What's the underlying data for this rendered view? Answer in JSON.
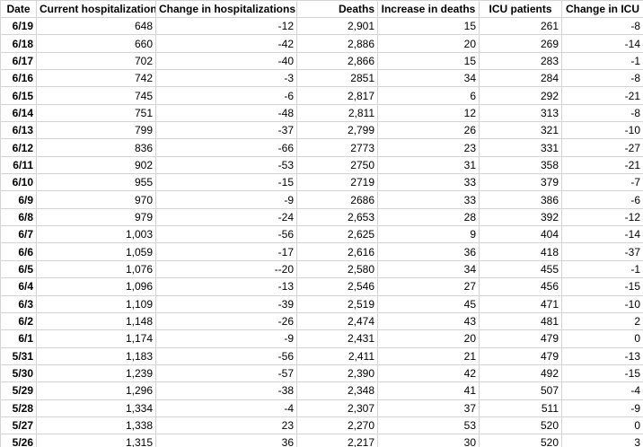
{
  "table": {
    "headers": [
      "Date",
      "Current hospitalizations",
      "Change in hospitalizations",
      "Deaths",
      "Increase in deaths",
      "ICU patients",
      "Change in ICU"
    ],
    "rows": [
      [
        "6/19",
        "648",
        "-12",
        "2,901",
        "15",
        "261",
        "-8"
      ],
      [
        "6/18",
        "660",
        "-42",
        "2,886",
        "20",
        "269",
        "-14"
      ],
      [
        "6/17",
        "702",
        "-40",
        "2,866",
        "15",
        "283",
        "-1"
      ],
      [
        "6/16",
        "742",
        "-3",
        "2851",
        "34",
        "284",
        "-8"
      ],
      [
        "6/15",
        "745",
        "-6",
        "2,817",
        "6",
        "292",
        "-21"
      ],
      [
        "6/14",
        "751",
        "-48",
        "2,811",
        "12",
        "313",
        "-8"
      ],
      [
        "6/13",
        "799",
        "-37",
        "2,799",
        "26",
        "321",
        "-10"
      ],
      [
        "6/12",
        "836",
        "-66",
        "2773",
        "23",
        "331",
        "-27"
      ],
      [
        "6/11",
        "902",
        "-53",
        "2750",
        "31",
        "358",
        "-21"
      ],
      [
        "6/10",
        "955",
        "-15",
        "2719",
        "33",
        "379",
        "-7"
      ],
      [
        "6/9",
        "970",
        "-9",
        "2686",
        "33",
        "386",
        "-6"
      ],
      [
        "6/8",
        "979",
        "-24",
        "2,653",
        "28",
        "392",
        "-12"
      ],
      [
        "6/7",
        "1,003",
        "-56",
        "2,625",
        "9",
        "404",
        "-14"
      ],
      [
        "6/6",
        "1,059",
        "-17",
        "2,616",
        "36",
        "418",
        "-37"
      ],
      [
        "6/5",
        "1,076",
        "--20",
        "2,580",
        "34",
        "455",
        "-1"
      ],
      [
        "6/4",
        "1,096",
        "-13",
        "2,546",
        "27",
        "456",
        "-15"
      ],
      [
        "6/3",
        "1,109",
        "-39",
        "2,519",
        "45",
        "471",
        "-10"
      ],
      [
        "6/2",
        "1,148",
        "-26",
        "2,474",
        "43",
        "481",
        "2"
      ],
      [
        "6/1",
        "1,174",
        "-9",
        "2,431",
        "20",
        "479",
        "0"
      ],
      [
        "5/31",
        "1,183",
        "-56",
        "2,411",
        "21",
        "479",
        "-13"
      ],
      [
        "5/30",
        "1,239",
        "-57",
        "2,390",
        "42",
        "492",
        "-15"
      ],
      [
        "5/29",
        "1,296",
        "-38",
        "2,348",
        "41",
        "507",
        "-4"
      ],
      [
        "5/28",
        "1,334",
        "-4",
        "2,307",
        "37",
        "511",
        "-9"
      ],
      [
        "5/27",
        "1,338",
        "23",
        "2,270",
        "53",
        "520",
        "0"
      ],
      [
        "5/26",
        "1,315",
        "36",
        "2,217",
        "30",
        "520",
        "3"
      ]
    ]
  }
}
